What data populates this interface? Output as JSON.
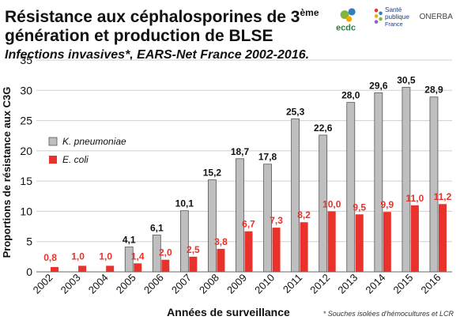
{
  "header": {
    "title_line1": "Résistance aux céphalosporines de 3",
    "title_sup": "ème",
    "title_line2": "génération et production de BLSE",
    "subtitle": "Infections invasives*, EARS-Net France 2002-2016."
  },
  "logos": {
    "ecdc": "ecdc",
    "spf_line1": "Santé",
    "spf_line2": "publique",
    "spf_line3": "France",
    "onerba": "ONERBA"
  },
  "footnote": "* Souches isolées d'hémocultures et LCR",
  "colors": {
    "kpn": "#bfbfbf",
    "ecoli": "#e8322b",
    "ecoli_label": "#e8322b",
    "grid": "#cfcfcf"
  },
  "chart_data": {
    "type": "bar",
    "categories": [
      "2002",
      "2003",
      "2004",
      "2005",
      "2006",
      "2007",
      "2008",
      "2009",
      "2010",
      "2011",
      "2012",
      "2013",
      "2014",
      "2015",
      "2016"
    ],
    "series": [
      {
        "name": "K. pneumoniae",
        "values": [
          null,
          null,
          null,
          4.1,
          6.1,
          10.1,
          15.2,
          18.7,
          17.8,
          25.3,
          22.6,
          28.0,
          29.6,
          30.5,
          28.9
        ],
        "labels": [
          "",
          "",
          "",
          "4,1",
          "6,1",
          "10,1",
          "15,2",
          "18,7",
          "17,8",
          "25,3",
          "22,6",
          "28,0",
          "29,6",
          "30,5",
          "28,9"
        ]
      },
      {
        "name": "E. coli",
        "values": [
          0.8,
          1.0,
          1.0,
          1.4,
          2.0,
          2.5,
          3.8,
          6.7,
          7.3,
          8.2,
          10.0,
          9.5,
          9.9,
          11.0,
          11.2
        ],
        "labels": [
          "0,8",
          "1,0",
          "1,0",
          "1,4",
          "2,0",
          "2,5",
          "3,8",
          "6,7",
          "7,3",
          "8,2",
          "10,0",
          "9,5",
          "9,9",
          "11,0",
          "11,2"
        ]
      }
    ],
    "ylim": [
      0,
      35
    ],
    "yticks": [
      0,
      5,
      10,
      15,
      20,
      25,
      30,
      35
    ],
    "xlabel": "Années de surveillance",
    "ylabel": "Proportions de résistance aux C3G",
    "legend": "top-left",
    "grid": true
  }
}
